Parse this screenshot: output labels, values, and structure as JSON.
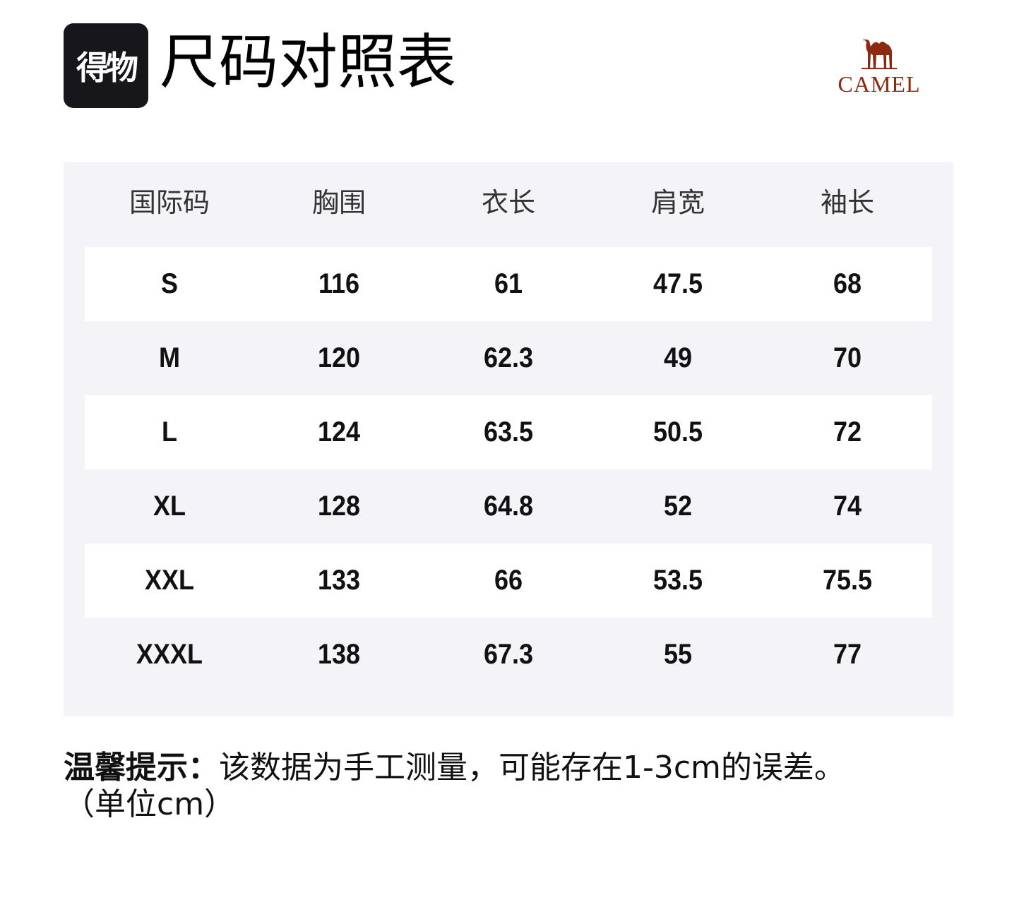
{
  "header": {
    "logo_text": "得物",
    "title": "尺码对照表",
    "brand": "CAMEL",
    "brand_color": "#8b2a10",
    "brand_icon": "camel-icon"
  },
  "table": {
    "columns": [
      "国际码",
      "胸围",
      "衣长",
      "肩宽",
      "袖长"
    ],
    "rows": [
      [
        "S",
        "116",
        "61",
        "47.5",
        "68"
      ],
      [
        "M",
        "120",
        "62.3",
        "49",
        "70"
      ],
      [
        "L",
        "124",
        "63.5",
        "50.5",
        "72"
      ],
      [
        "XL",
        "128",
        "64.8",
        "52",
        "74"
      ],
      [
        "XXL",
        "133",
        "66",
        "53.5",
        "75.5"
      ],
      [
        "XXXL",
        "138",
        "67.3",
        "55",
        "77"
      ]
    ]
  },
  "note": {
    "label": "温馨提示：",
    "text": "该数据为手工测量，可能存在1-3cm的误差。",
    "unit": "（单位cm）"
  }
}
